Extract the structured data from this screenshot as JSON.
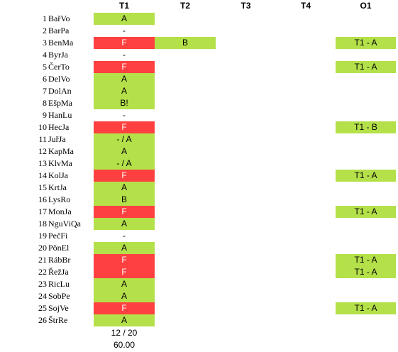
{
  "columns": {
    "t1": "T1",
    "t2": "T2",
    "t3": "T3",
    "t4": "T4",
    "o1": "O1"
  },
  "colors": {
    "green": "#b4e04a",
    "red": "#ff4040"
  },
  "rows": [
    {
      "num": "1",
      "name": "BařVo",
      "t1": "A",
      "t1_color": "green",
      "t2": "",
      "o1": ""
    },
    {
      "num": "2",
      "name": "BarPa",
      "t1": "-",
      "t1_color": "none",
      "t2": "",
      "o1": ""
    },
    {
      "num": "3",
      "name": "BenMa",
      "t1": "F",
      "t1_color": "red",
      "t2": "B",
      "o1": "T1 - A"
    },
    {
      "num": "4",
      "name": "ByrJa",
      "t1": "-",
      "t1_color": "none",
      "t2": "",
      "o1": ""
    },
    {
      "num": "5",
      "name": "ČerTo",
      "t1": "F",
      "t1_color": "red",
      "t2": "",
      "o1": "T1 - A"
    },
    {
      "num": "6",
      "name": "DelVo",
      "t1": "A",
      "t1_color": "green",
      "t2": "",
      "o1": ""
    },
    {
      "num": "7",
      "name": "DolAn",
      "t1": "A",
      "t1_color": "green",
      "t2": "",
      "o1": ""
    },
    {
      "num": "8",
      "name": "EšpMa",
      "t1": "B!",
      "t1_color": "green",
      "t2": "",
      "o1": ""
    },
    {
      "num": "9",
      "name": "HanLu",
      "t1": "-",
      "t1_color": "none",
      "t2": "",
      "o1": ""
    },
    {
      "num": "10",
      "name": "HecJa",
      "t1": "F",
      "t1_color": "red",
      "t2": "",
      "o1": "T1 - B"
    },
    {
      "num": "11",
      "name": "JuřJa",
      "t1": "- / A",
      "t1_color": "green",
      "t2": "",
      "o1": ""
    },
    {
      "num": "12",
      "name": "KapMa",
      "t1": "A",
      "t1_color": "green",
      "t2": "",
      "o1": ""
    },
    {
      "num": "13",
      "name": "KlvMa",
      "t1": "- / A",
      "t1_color": "green",
      "t2": "",
      "o1": ""
    },
    {
      "num": "14",
      "name": "KolJa",
      "t1": "F",
      "t1_color": "red",
      "t2": "",
      "o1": "T1 - A"
    },
    {
      "num": "15",
      "name": "KrtJa",
      "t1": "A",
      "t1_color": "green",
      "t2": "",
      "o1": ""
    },
    {
      "num": "16",
      "name": "LysRo",
      "t1": "B",
      "t1_color": "green",
      "t2": "",
      "o1": ""
    },
    {
      "num": "17",
      "name": "MonJa",
      "t1": "F",
      "t1_color": "red",
      "t2": "",
      "o1": "T1 - A"
    },
    {
      "num": "18",
      "name": "NguViQa",
      "t1": "A",
      "t1_color": "green",
      "t2": "",
      "o1": ""
    },
    {
      "num": "19",
      "name": "PečFi",
      "t1": "-",
      "t1_color": "none",
      "t2": "",
      "o1": ""
    },
    {
      "num": "20",
      "name": "PõnEl",
      "t1": "A",
      "t1_color": "green",
      "t2": "",
      "o1": ""
    },
    {
      "num": "21",
      "name": "RábBr",
      "t1": "F",
      "t1_color": "red",
      "t2": "",
      "o1": "T1 - A"
    },
    {
      "num": "22",
      "name": "ŘežJa",
      "t1": "F",
      "t1_color": "red",
      "t2": "",
      "o1": "T1 - A"
    },
    {
      "num": "23",
      "name": "RicLu",
      "t1": "A",
      "t1_color": "green",
      "t2": "",
      "o1": ""
    },
    {
      "num": "24",
      "name": "SobPe",
      "t1": "A",
      "t1_color": "green",
      "t2": "",
      "o1": ""
    },
    {
      "num": "25",
      "name": "SojVe",
      "t1": "F",
      "t1_color": "red",
      "t2": "",
      "o1": "T1 - A"
    },
    {
      "num": "26",
      "name": "ŠtrRe",
      "t1": "A",
      "t1_color": "green",
      "t2": "",
      "o1": ""
    }
  ],
  "footer": {
    "pass_count": "12 / 20",
    "score": "60.00"
  }
}
